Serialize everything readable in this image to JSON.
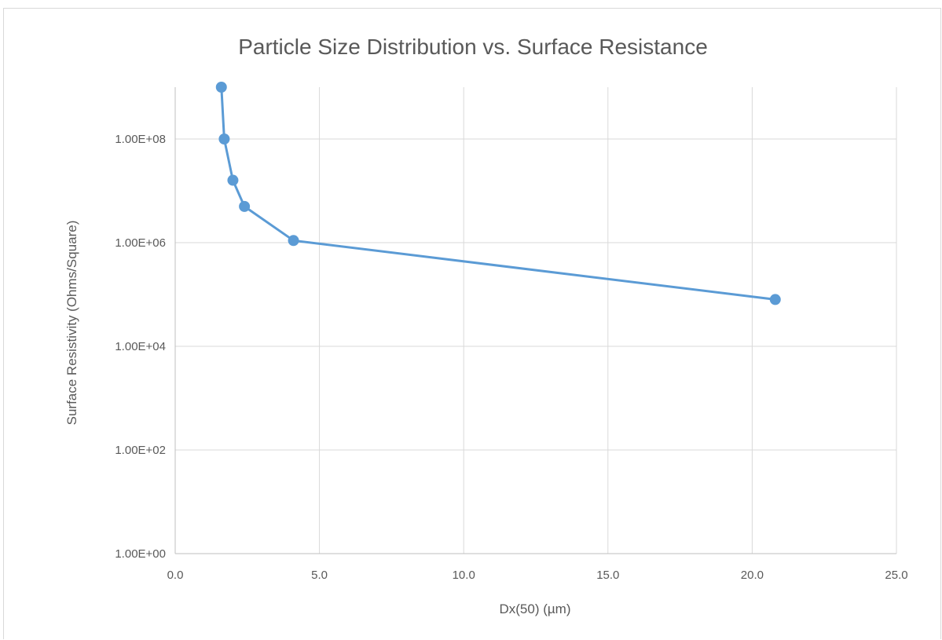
{
  "chart_data": {
    "type": "scatter",
    "title": "Particle Size Distribution vs. Surface Resistance",
    "xlabel": "Dx(50) (µm)",
    "ylabel": "Surface Resistivity (Ohms/Square)",
    "xlim": [
      0,
      25
    ],
    "ylim": [
      1,
      1000000000
    ],
    "y_scale": "log",
    "x_ticks": [
      0,
      5,
      10,
      15,
      20,
      25
    ],
    "x_tick_labels": [
      "0.0",
      "5.0",
      "10.0",
      "15.0",
      "20.0",
      "25.0"
    ],
    "y_ticks": [
      1,
      100,
      10000,
      1000000,
      100000000
    ],
    "y_tick_labels": [
      "1.00E+00",
      "1.00E+02",
      "1.00E+04",
      "1.00E+06",
      "1.00E+08"
    ],
    "grid": true,
    "legend": "none",
    "series": [
      {
        "color": "#5b9bd5",
        "marker": "circle",
        "connected": true,
        "x": [
          1.6,
          1.7,
          2.0,
          2.4,
          4.1,
          20.8
        ],
        "y": [
          1000000000,
          100000000,
          16000000,
          5000000,
          1100000,
          80000
        ]
      }
    ]
  }
}
